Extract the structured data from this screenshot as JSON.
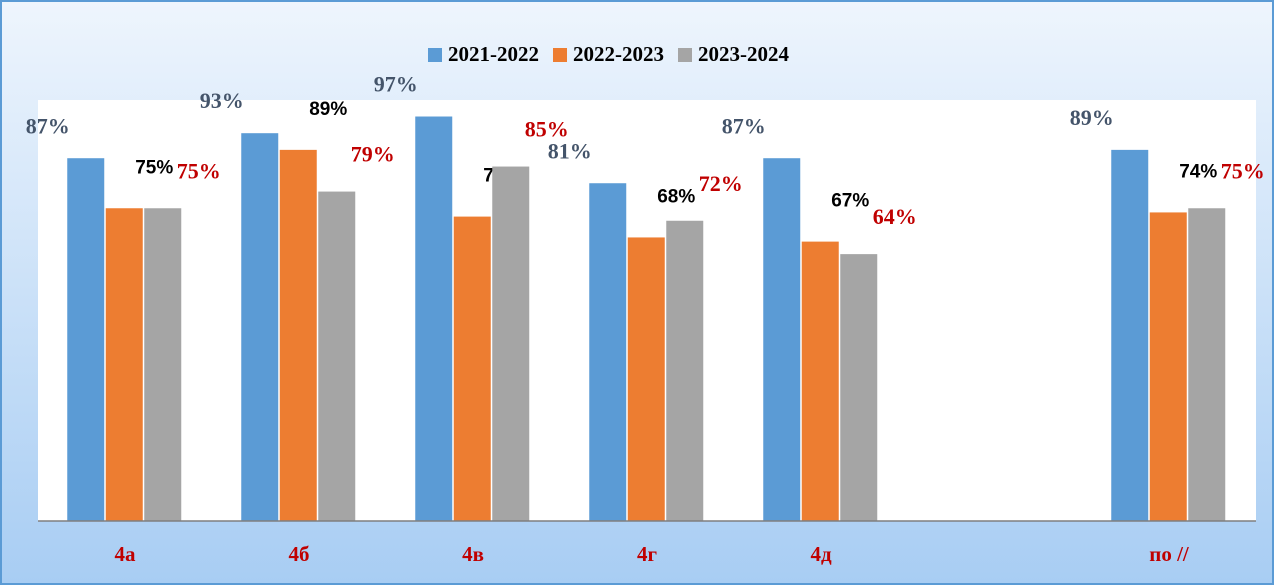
{
  "chart_data": {
    "type": "bar",
    "categories": [
      "4а",
      "4б",
      "4в",
      "4г",
      "4д",
      null,
      "по //"
    ],
    "series": [
      {
        "name": "2021-2022",
        "color": "#5b9bd5",
        "label_color": "#44546a",
        "values": [
          87,
          93,
          97,
          81,
          87,
          null,
          89
        ],
        "value_labels": [
          "87%",
          "93%",
          "97%",
          "81%",
          "87%",
          null,
          "89%"
        ]
      },
      {
        "name": "2022-2023",
        "color": "#ed7d31",
        "label_color": "#000000",
        "values": [
          75,
          89,
          73,
          68,
          67,
          null,
          74
        ],
        "value_labels": [
          "75%",
          "89%",
          "73%",
          "68%",
          "67%",
          null,
          "74%"
        ]
      },
      {
        "name": "2023-2024",
        "color": "#a5a5a5",
        "label_color": "#c00000",
        "values": [
          75,
          79,
          85,
          72,
          64,
          null,
          75
        ],
        "value_labels": [
          "75%",
          "79%",
          "85%",
          "72%",
          "64%",
          null,
          "75%"
        ]
      }
    ],
    "ylim": [
      0,
      100
    ],
    "category_label_color": "#c00000",
    "legend": "top"
  }
}
